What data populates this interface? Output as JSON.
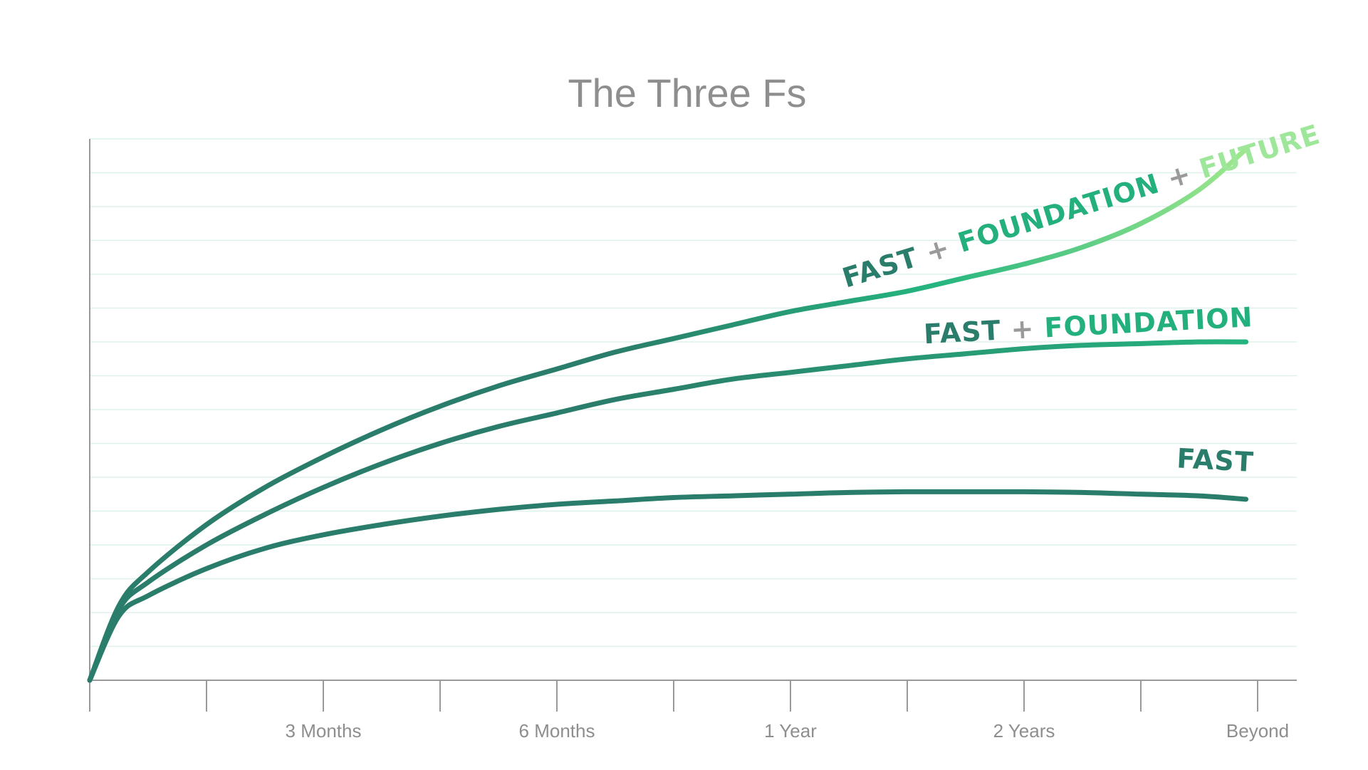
{
  "chart_data": {
    "type": "line",
    "title": "The Three Fs",
    "xlabel": "",
    "ylabel": "",
    "x_ticks": [
      "",
      "",
      "3 Months",
      "",
      "6 Months",
      "",
      "1 Year",
      "",
      "2 Years",
      "",
      "Beyond"
    ],
    "xlim": [
      0,
      10
    ],
    "ylim": [
      0,
      16
    ],
    "y_ticks_shown": false,
    "grid": "horizontal",
    "legend": "inline labels at line ends",
    "series": [
      {
        "name": "FAST + FOUNDATION + FUTURE",
        "label_parts": [
          {
            "text": "FAST",
            "color": "#2a7d6a"
          },
          {
            "text": " + ",
            "color": "#9a9a9a"
          },
          {
            "text": "FOUNDATION",
            "color": "#23b07d"
          },
          {
            "text": " + ",
            "color": "#9a9a9a"
          },
          {
            "text": "FUTURE",
            "color": "#9ee79a"
          }
        ],
        "colors": [
          "#2a7d6a",
          "#25b57f",
          "#a3ea8c"
        ],
        "x": [
          0,
          0.25,
          0.5,
          1,
          1.5,
          2,
          2.5,
          3,
          3.5,
          4,
          4.5,
          5,
          5.5,
          6,
          6.5,
          7,
          7.5,
          8,
          8.5,
          9,
          9.5,
          9.9
        ],
        "y": [
          0,
          2.2,
          3.2,
          4.6,
          5.7,
          6.6,
          7.4,
          8.1,
          8.7,
          9.2,
          9.7,
          10.1,
          10.5,
          10.9,
          11.2,
          11.5,
          11.9,
          12.3,
          12.8,
          13.5,
          14.5,
          15.7
        ]
      },
      {
        "name": "FAST + FOUNDATION",
        "label_parts": [
          {
            "text": "FAST",
            "color": "#2a7d6a"
          },
          {
            "text": " + ",
            "color": "#9a9a9a"
          },
          {
            "text": "FOUNDATION",
            "color": "#23b07d"
          }
        ],
        "colors": [
          "#2a7d6a",
          "#25b57f"
        ],
        "x": [
          0,
          0.25,
          0.5,
          1,
          1.5,
          2,
          2.5,
          3,
          3.5,
          4,
          4.5,
          5,
          5.5,
          6,
          6.5,
          7,
          7.5,
          8,
          8.5,
          9,
          9.5,
          9.9
        ],
        "y": [
          0,
          2.1,
          2.9,
          4.0,
          4.9,
          5.7,
          6.4,
          7.0,
          7.5,
          7.9,
          8.3,
          8.6,
          8.9,
          9.1,
          9.3,
          9.5,
          9.65,
          9.8,
          9.9,
          9.95,
          10.0,
          10.0
        ]
      },
      {
        "name": "FAST",
        "label_parts": [
          {
            "text": "FAST",
            "color": "#2a7d6a"
          }
        ],
        "colors": [
          "#2a7d6a",
          "#2a7d6a"
        ],
        "x": [
          0,
          0.25,
          0.5,
          1,
          1.5,
          2,
          2.5,
          3,
          3.5,
          4,
          4.5,
          5,
          5.5,
          6,
          6.5,
          7,
          7.5,
          8,
          8.5,
          9,
          9.5,
          9.9
        ],
        "y": [
          0,
          1.9,
          2.5,
          3.3,
          3.9,
          4.3,
          4.6,
          4.85,
          5.05,
          5.2,
          5.3,
          5.4,
          5.45,
          5.5,
          5.55,
          5.57,
          5.57,
          5.57,
          5.55,
          5.5,
          5.45,
          5.35
        ]
      }
    ]
  },
  "style": {
    "axis_color": "#9a9a9a",
    "grid_color": "#dff1ee"
  }
}
